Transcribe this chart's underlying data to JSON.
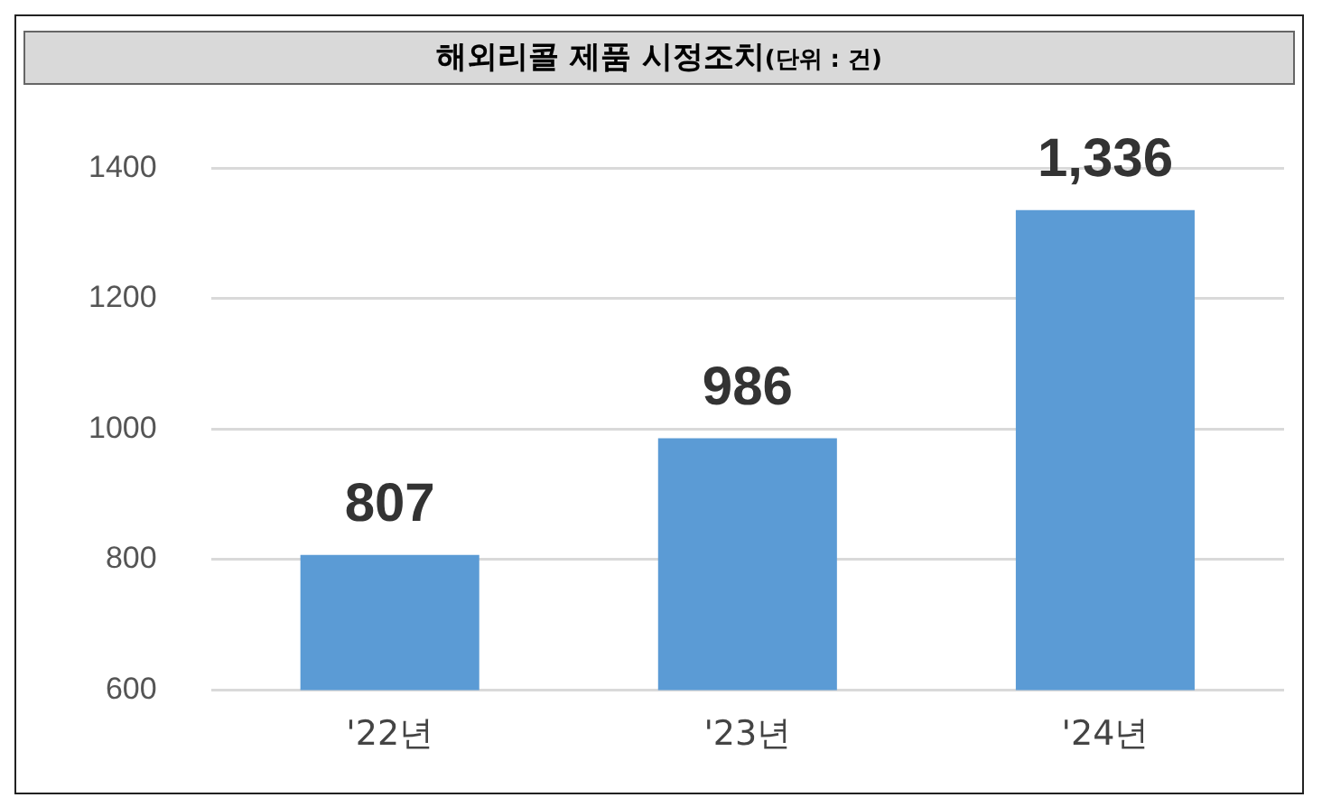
{
  "chart_data": {
    "type": "bar",
    "title": "해외리콜 제품 시정조치",
    "subtitle": "(단위 : 건)",
    "categories": [
      "'22년",
      "'23년",
      "'24년"
    ],
    "values": [
      807,
      986,
      1336
    ],
    "value_labels": [
      "807",
      "986",
      "1,336"
    ],
    "color": "#5b9bd5",
    "ylim": [
      600,
      1400
    ],
    "yticks": [
      600,
      800,
      1000,
      1200,
      1400
    ],
    "grid": "y",
    "legend": false
  }
}
